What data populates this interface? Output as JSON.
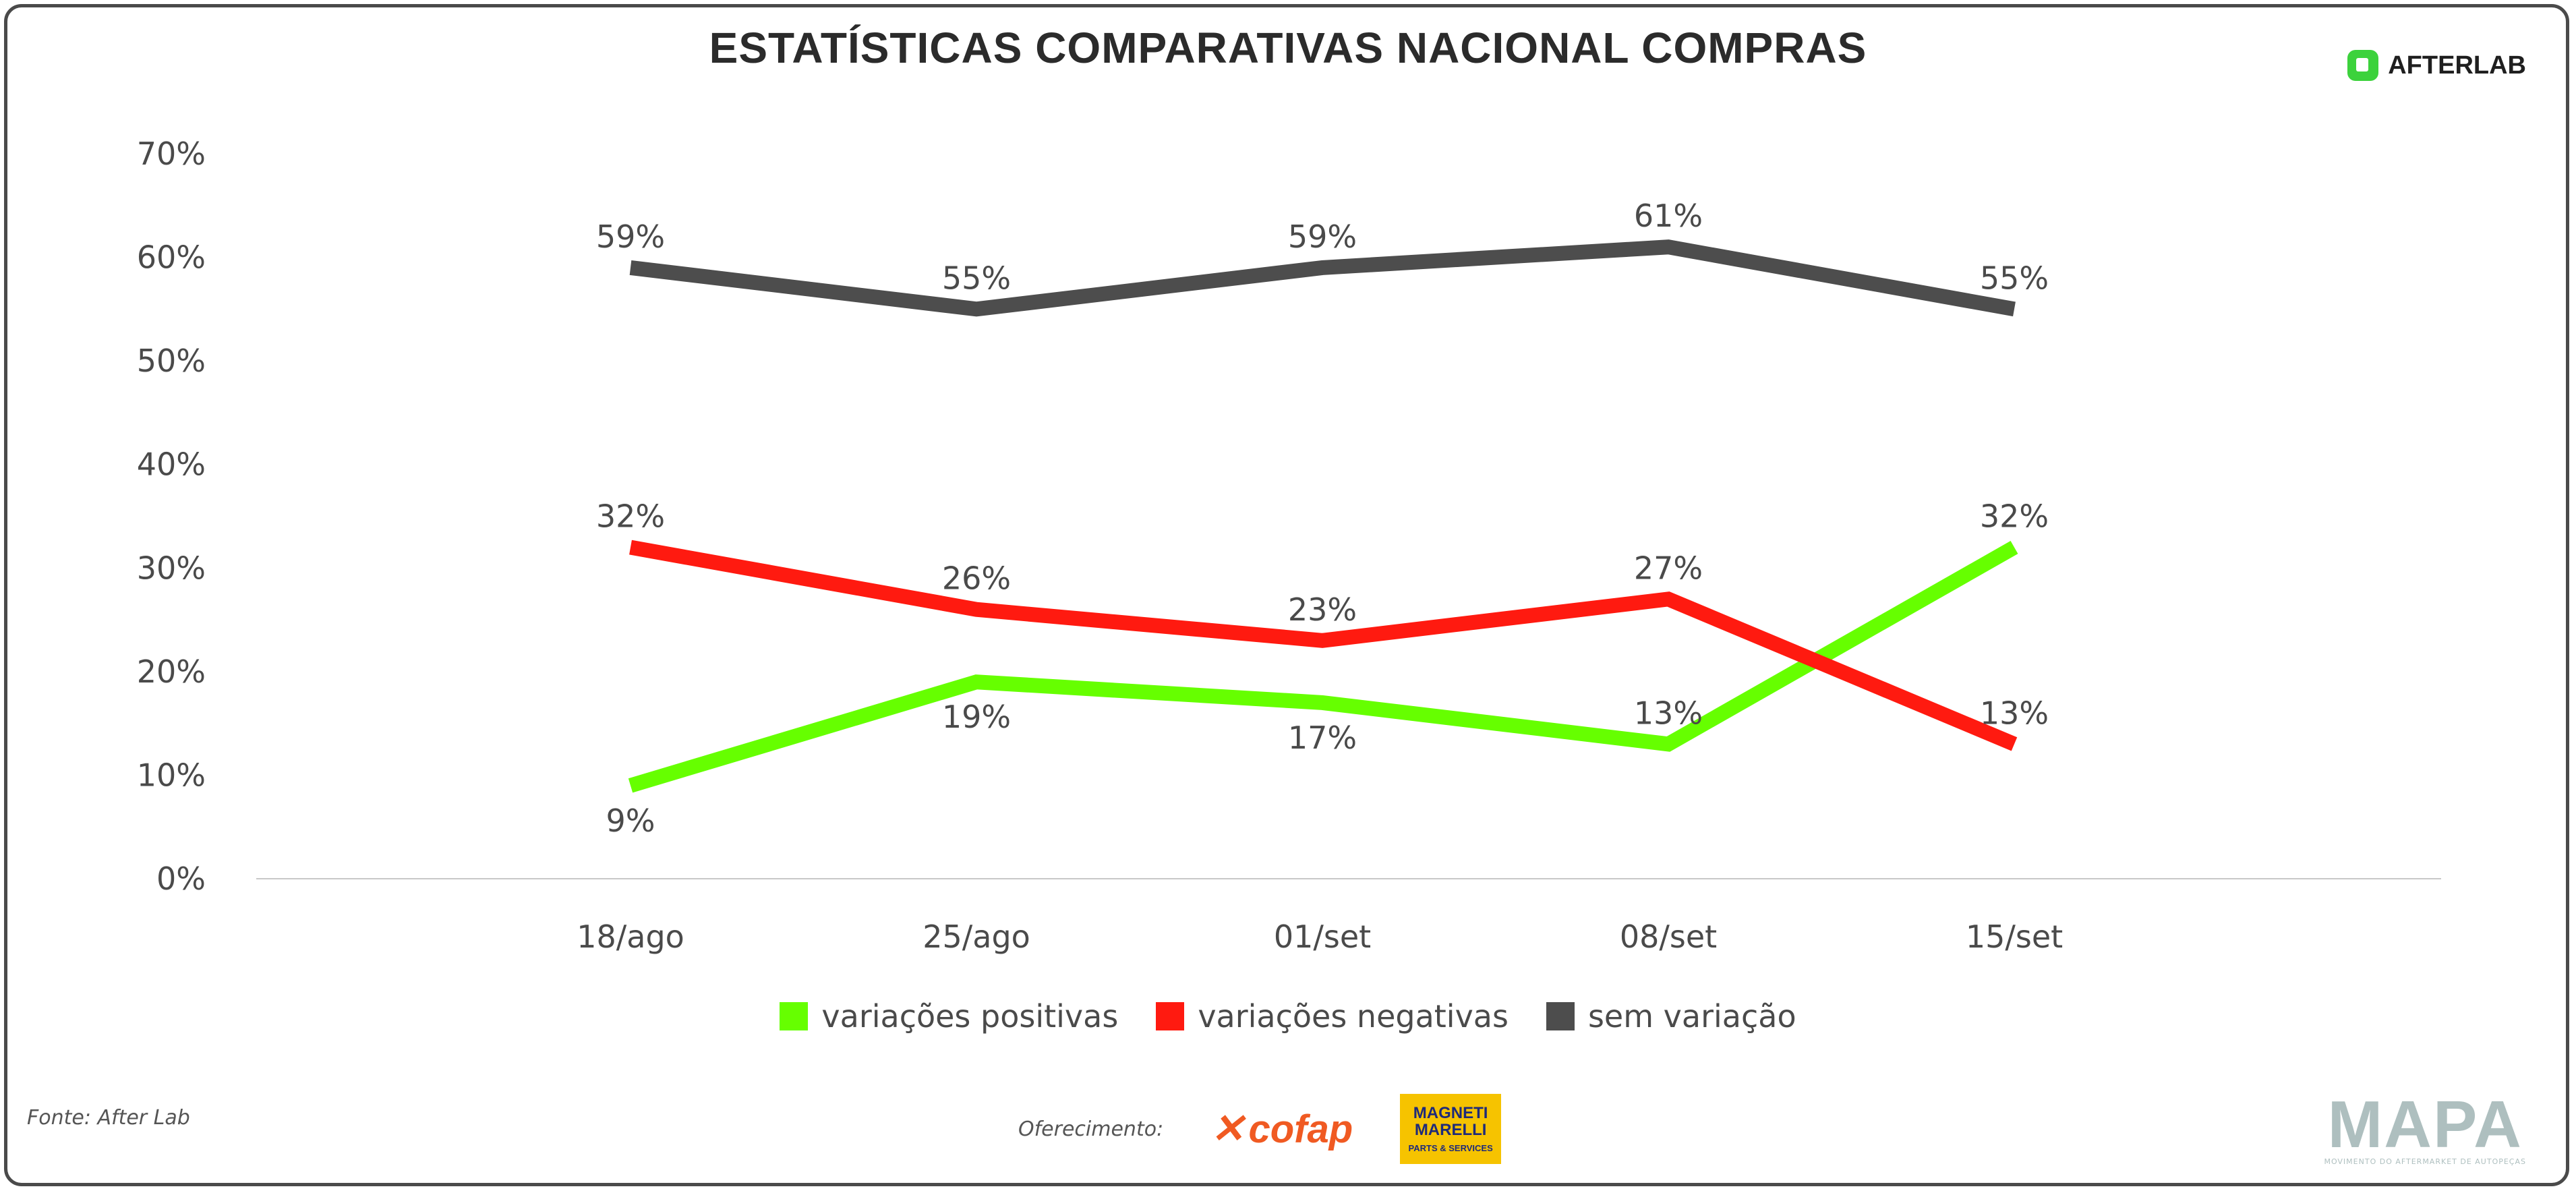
{
  "header": {
    "title": "ESTATÍSTICAS COMPARATIVAS NACIONAL COMPRAS",
    "brand": "AFTERLAB"
  },
  "colors": {
    "positive": "#66ff00",
    "negative": "#ff1a10",
    "neutral": "#4d4d4d",
    "axis_text": "#4a4a4a",
    "cofap": "#f05a22",
    "mapa": "#aebfbf"
  },
  "chart_data": {
    "type": "line",
    "title": "ESTATÍSTICAS COMPARATIVAS NACIONAL COMPRAS",
    "categories": [
      "18/ago",
      "25/ago",
      "01/set",
      "08/set",
      "15/set"
    ],
    "ylim": [
      0,
      70
    ],
    "yticks": [
      0,
      10,
      20,
      30,
      40,
      50,
      60,
      70
    ],
    "ytick_labels": [
      "0%",
      "10%",
      "20%",
      "30%",
      "40%",
      "50%",
      "60%",
      "70%"
    ],
    "grid": false,
    "legend_position": "bottom-center",
    "series": [
      {
        "name": "variações positivas",
        "key": "positive",
        "values": [
          9,
          19,
          17,
          13,
          32
        ],
        "labels": [
          "9%",
          "19%",
          "17%",
          "13%",
          "32%"
        ],
        "label_pos": [
          "below",
          "below",
          "below",
          "above",
          "above"
        ]
      },
      {
        "name": "variações negativas",
        "key": "negative",
        "values": [
          32,
          26,
          23,
          27,
          13
        ],
        "labels": [
          "32%",
          "26%",
          "23%",
          "27%",
          "13%"
        ],
        "label_pos": [
          "above",
          "above",
          "above",
          "above",
          "above"
        ]
      },
      {
        "name": "sem variação",
        "key": "neutral",
        "values": [
          59,
          55,
          59,
          61,
          55
        ],
        "labels": [
          "59%",
          "55%",
          "59%",
          "61%",
          "55%"
        ],
        "label_pos": [
          "above",
          "above",
          "above",
          "above",
          "above"
        ]
      }
    ]
  },
  "legend": {
    "items": [
      {
        "label": "variações positivas",
        "color": "#66ff00"
      },
      {
        "label": "variações negativas",
        "color": "#ff1a10"
      },
      {
        "label": "sem variação",
        "color": "#4d4d4d"
      }
    ]
  },
  "footer": {
    "source": "Fonte: After Lab",
    "sponsor_label": "Oferecimento:",
    "cofap": "cofap",
    "magneti_1": "MAGNETI",
    "magneti_2": "MARELLI",
    "magneti_3": "PARTS & SERVICES",
    "mapa": "MAPA",
    "mapa_tagline": "MOVIMENTO DO AFTERMARKET DE AUTOPEÇAS"
  }
}
